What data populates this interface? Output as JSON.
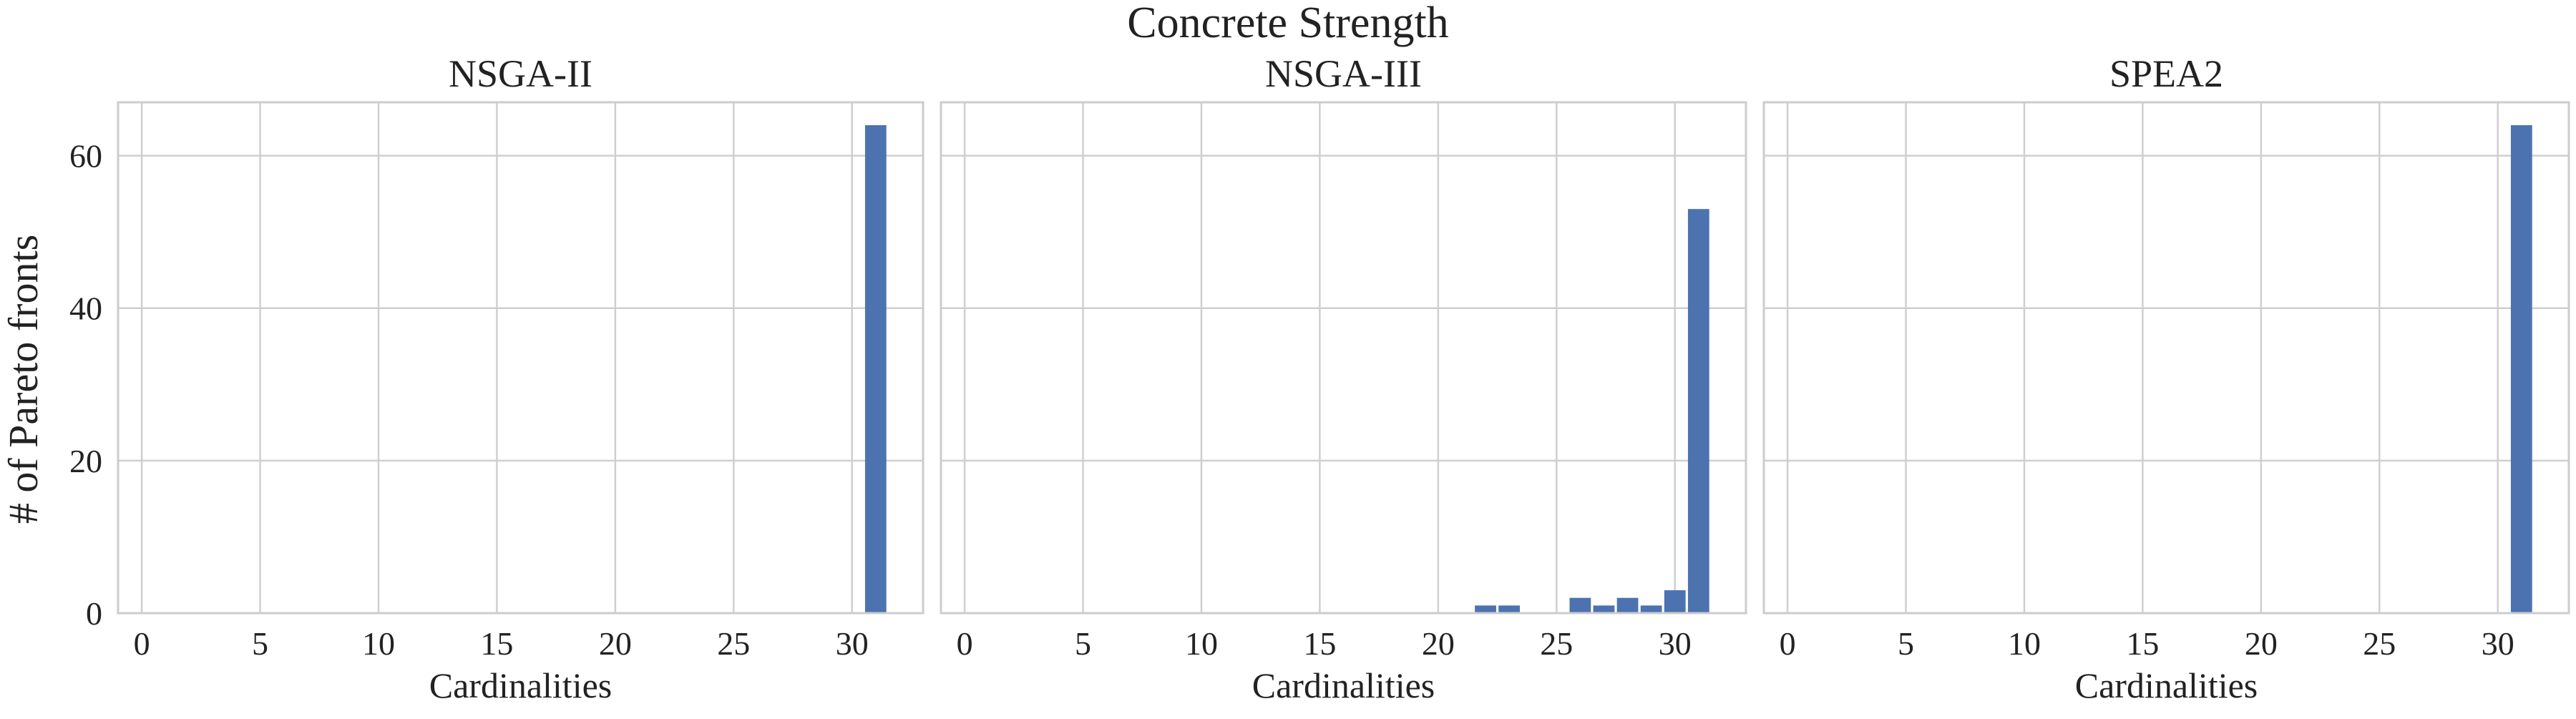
{
  "figure": {
    "title": "Concrete Strength",
    "ylabel": "# of Pareto fronts"
  },
  "colors": {
    "bar": "#4c72b0",
    "grid": "#cfcfcf",
    "frame": "#cccccc",
    "text": "#222222"
  },
  "chart_data": [
    {
      "type": "bar",
      "title": "NSGA-II",
      "xlabel": "Cardinalities",
      "ylabel": "# of Pareto fronts",
      "xlim": [
        -1,
        33
      ],
      "ylim": [
        0,
        67
      ],
      "xticks": [
        0,
        5,
        10,
        15,
        20,
        25,
        30
      ],
      "yticks": [
        0,
        20,
        40,
        60
      ],
      "grid": true,
      "x": [
        31
      ],
      "values": [
        64
      ]
    },
    {
      "type": "bar",
      "title": "NSGA-III",
      "xlabel": "Cardinalities",
      "ylabel": "",
      "xlim": [
        -1,
        33
      ],
      "ylim": [
        0,
        67
      ],
      "xticks": [
        0,
        5,
        10,
        15,
        20,
        25,
        30
      ],
      "yticks": [
        0,
        20,
        40,
        60
      ],
      "grid": true,
      "x": [
        22,
        23,
        26,
        27,
        28,
        29,
        30,
        31
      ],
      "values": [
        1,
        1,
        2,
        1,
        2,
        1,
        3,
        53
      ]
    },
    {
      "type": "bar",
      "title": "SPEA2",
      "xlabel": "Cardinalities",
      "ylabel": "",
      "xlim": [
        -1,
        33
      ],
      "ylim": [
        0,
        67
      ],
      "xticks": [
        0,
        5,
        10,
        15,
        20,
        25,
        30
      ],
      "yticks": [
        0,
        20,
        40,
        60
      ],
      "grid": true,
      "x": [
        31
      ],
      "values": [
        64
      ]
    }
  ]
}
